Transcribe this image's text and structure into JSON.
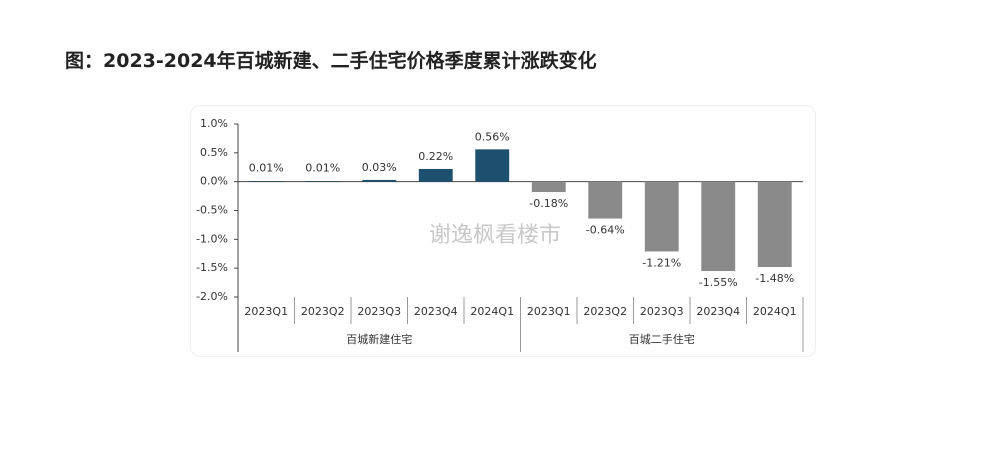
{
  "page_title": "图：2023-2024年百城新建、二手住宅价格季度累计涨跌变化",
  "chart_data": {
    "type": "bar",
    "ylim": [
      -2.0,
      1.0
    ],
    "yticks": [
      {
        "value": 1.0,
        "label": "1.0%"
      },
      {
        "value": 0.5,
        "label": "0.5%"
      },
      {
        "value": 0.0,
        "label": "0.0%"
      },
      {
        "value": -0.5,
        "label": "-0.5%"
      },
      {
        "value": -1.0,
        "label": "-1.0%"
      },
      {
        "value": -1.5,
        "label": "-1.5%"
      },
      {
        "value": -2.0,
        "label": "-2.0%"
      }
    ],
    "watermark": "谢逸枫看楼市",
    "groups": [
      {
        "name": "百城新建住宅",
        "color": "#1d4f6e",
        "categories": [
          "2023Q1",
          "2023Q2",
          "2023Q3",
          "2023Q4",
          "2024Q1"
        ],
        "values": [
          0.01,
          0.01,
          0.03,
          0.22,
          0.56
        ],
        "value_labels": [
          "0.01%",
          "0.01%",
          "0.03%",
          "0.22%",
          "0.56%"
        ]
      },
      {
        "name": "百城二手住宅",
        "color": "#8a8a8a",
        "categories": [
          "2023Q1",
          "2023Q2",
          "2023Q3",
          "2023Q4",
          "2024Q1"
        ],
        "values": [
          -0.18,
          -0.64,
          -1.21,
          -1.55,
          -1.48
        ],
        "value_labels": [
          "-0.18%",
          "-0.64%",
          "-1.21%",
          "-1.55%",
          "-1.48%"
        ]
      }
    ]
  }
}
